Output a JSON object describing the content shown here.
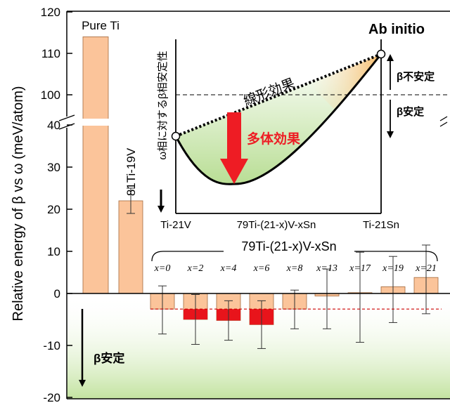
{
  "chart_data": {
    "type": "bar",
    "ylabel": "Relative energy of β vs ω (meV/atom)",
    "ylim": [
      -20,
      120
    ],
    "axis_break": [
      45,
      95
    ],
    "y_ticks": [
      {
        "value": 120,
        "label": "120"
      },
      {
        "value": 110,
        "label": "110"
      },
      {
        "value": 100,
        "label": "100"
      },
      {
        "value": 40,
        "label": "40"
      },
      {
        "value": 30,
        "label": "30"
      },
      {
        "value": 20,
        "label": "20"
      },
      {
        "value": 10,
        "label": "10"
      },
      {
        "value": 0,
        "label": "0"
      },
      {
        "value": -10,
        "label": "-10"
      },
      {
        "value": -20,
        "label": "-20"
      }
    ],
    "bars": [
      {
        "label": "Pure Ti",
        "value": 114,
        "err": 0
      },
      {
        "label": "81Ti-19V",
        "value": 22,
        "err": 3
      },
      {
        "label": "x=0",
        "value": -3,
        "err": 4.8,
        "red_from": null
      },
      {
        "label": "x=2",
        "value": -5,
        "err": 4.8,
        "red_from": -3
      },
      {
        "label": "x=4",
        "value": -5.2,
        "err": 3.8,
        "red_from": -3
      },
      {
        "label": "x=6",
        "value": -6,
        "err": 4.6,
        "red_from": -3
      },
      {
        "label": "x=8",
        "value": -3,
        "err": 3.8,
        "red_from": null
      },
      {
        "label": "x=13",
        "value": -0.5,
        "err": 6.3,
        "red_from": null
      },
      {
        "label": "x=17",
        "value": 0.2,
        "err": 9.6,
        "red_from": null
      },
      {
        "label": "x=19",
        "value": 1.6,
        "err": 7.2,
        "red_from": null
      },
      {
        "label": "x=21",
        "value": 3.8,
        "err": 7.7,
        "red_from": null
      }
    ],
    "reference_line": -3,
    "group_label": "79Ti-(21-x)V-xSn",
    "bottom_note": "β安定"
  },
  "inset": {
    "title": "Ab initio",
    "ylabel": "ω相に対するβ相安定性",
    "x_ticks": [
      "Ti-21V",
      "79Ti-(21-x)V-xSn",
      "Ti-21Sn"
    ],
    "linear_label": "線形効果",
    "many_body_label": "多体効果"
  },
  "right_arrows": {
    "unstable": "β不安定",
    "stable": "β安定"
  },
  "colors": {
    "bar": "#fbc49a",
    "bar_red": "#e8141b",
    "red_arrow": "#ee1c24",
    "green": "#c9e6a3",
    "orange_tint": "#f9c98a",
    "ref_line": "#cc0000"
  }
}
